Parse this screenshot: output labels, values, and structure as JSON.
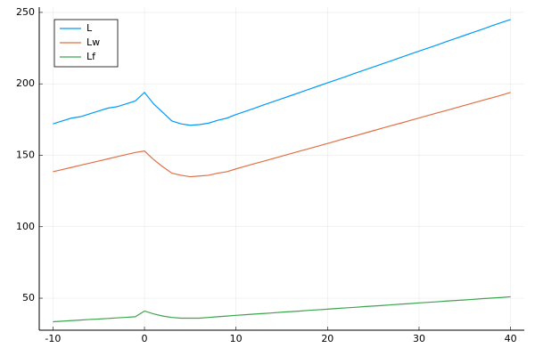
{
  "chart_data": {
    "type": "line",
    "x": [
      -10,
      -9,
      -8,
      -7,
      -6,
      -5,
      -4,
      -3,
      -2,
      -1,
      0,
      1,
      2,
      3,
      4,
      5,
      6,
      7,
      8,
      9,
      10,
      11,
      12,
      13,
      14,
      15,
      16,
      17,
      18,
      19,
      20,
      21,
      22,
      23,
      24,
      25,
      26,
      27,
      28,
      29,
      30,
      31,
      32,
      33,
      34,
      35,
      36,
      37,
      38,
      39,
      40
    ],
    "series": [
      {
        "name": "L",
        "color": "#009af9",
        "values": [
          172,
          174,
          176,
          177,
          179,
          181,
          183,
          184,
          186,
          188,
          194,
          186,
          180,
          174,
          172,
          171,
          171.5,
          172.5,
          174.5,
          176,
          178.5,
          180.7,
          182.9,
          185.2,
          187.4,
          189.6,
          191.8,
          194,
          196.3,
          198.5,
          200.7,
          202.9,
          205.1,
          207.4,
          209.6,
          211.8,
          214,
          216.2,
          218.5,
          220.7,
          222.9,
          225.1,
          227.3,
          229.6,
          231.8,
          234,
          236.2,
          238.4,
          240.7,
          242.9,
          245
        ]
      },
      {
        "name": "Lw",
        "color": "#e26f46",
        "values": [
          138.5,
          140,
          141.5,
          143,
          144.5,
          146,
          147.5,
          149,
          150.5,
          152,
          153,
          147,
          142,
          137.5,
          136,
          135,
          135.5,
          136,
          137.5,
          138.5,
          140.5,
          142.3,
          144.1,
          145.8,
          147.6,
          149.4,
          151.2,
          153,
          154.7,
          156.5,
          158.3,
          160.1,
          161.9,
          163.6,
          165.4,
          167.2,
          169,
          170.8,
          172.5,
          174.3,
          176.1,
          177.9,
          179.7,
          181.4,
          183.2,
          185,
          186.8,
          188.6,
          190.3,
          192.1,
          194
        ]
      },
      {
        "name": "Lf",
        "color": "#3da44d",
        "values": [
          33.5,
          33.9,
          34.3,
          34.7,
          35.1,
          35.4,
          35.8,
          36.2,
          36.6,
          37,
          41,
          39,
          37.5,
          36.5,
          36,
          36,
          36,
          36.5,
          37,
          37.5,
          38,
          38.4,
          38.9,
          39.3,
          39.7,
          40.2,
          40.6,
          41,
          41.5,
          41.9,
          42.3,
          42.8,
          43.2,
          43.6,
          44.1,
          44.5,
          44.9,
          45.4,
          45.8,
          46.2,
          46.7,
          47.1,
          47.5,
          48,
          48.4,
          48.8,
          49.2,
          49.7,
          50.1,
          50.5,
          51
        ]
      }
    ],
    "xlim": [
      -11.5,
      41.5
    ],
    "ylim": [
      27.6,
      253.7
    ],
    "xticks": [
      -10,
      0,
      10,
      20,
      30,
      40
    ],
    "yticks": [
      50,
      100,
      150,
      200,
      250
    ],
    "grid": true,
    "legend": "top-left"
  }
}
